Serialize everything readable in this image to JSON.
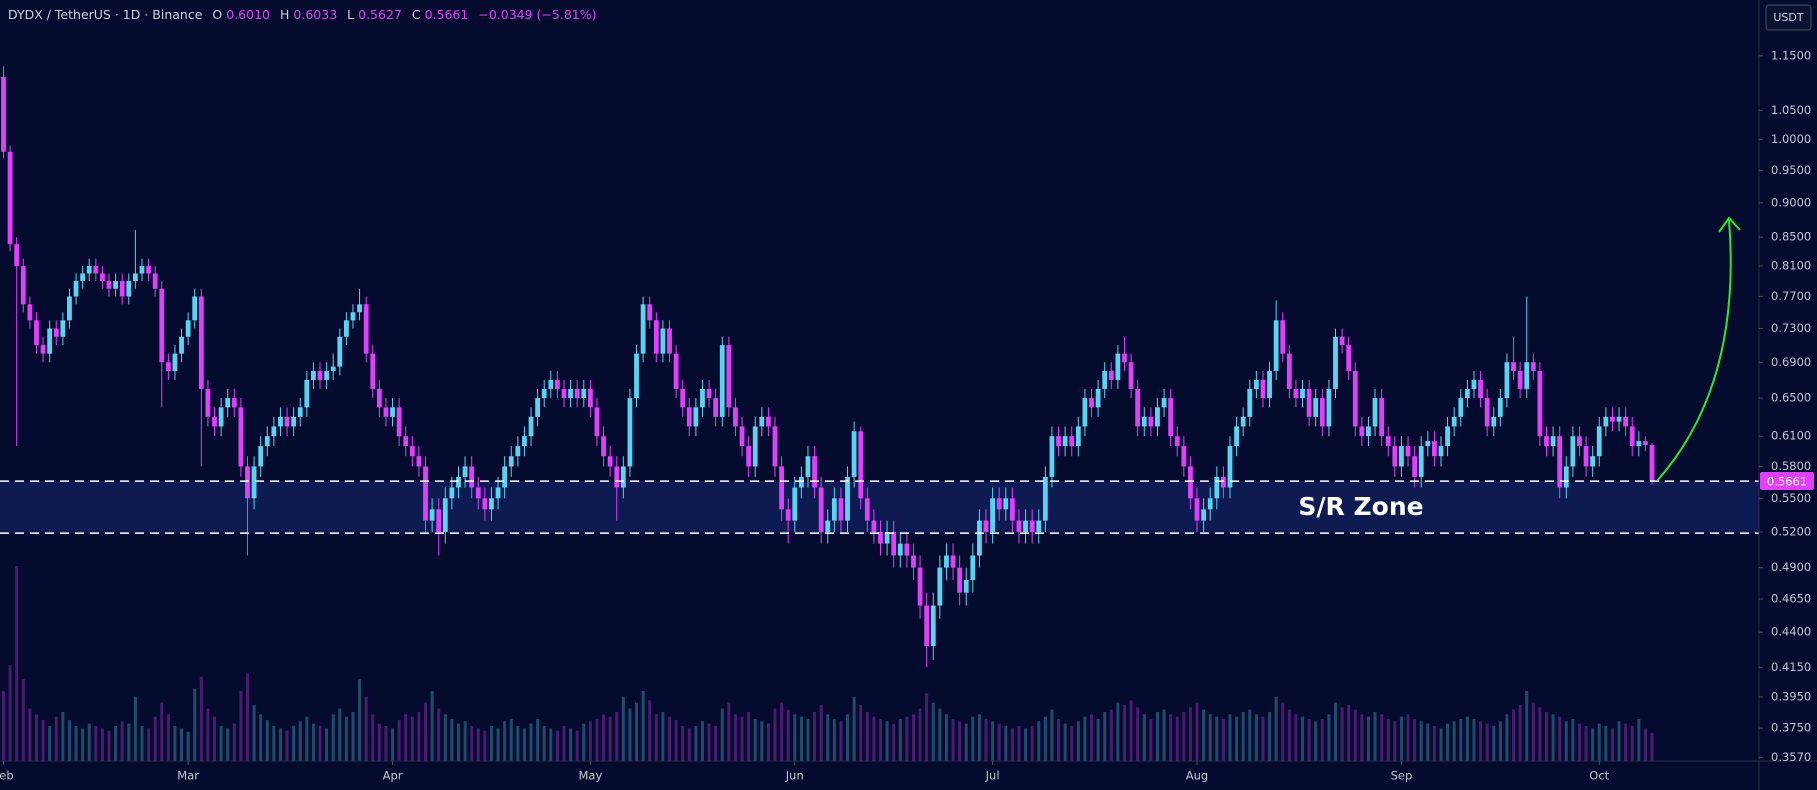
{
  "chart_data": {
    "type": "candlestick",
    "title": "DYDX / TetherUS · 1D · Binance",
    "ohlc_legend": [
      {
        "key": "O",
        "value": "0.6010"
      },
      {
        "key": "H",
        "value": "0.6033"
      },
      {
        "key": "L",
        "value": "0.5627"
      },
      {
        "key": "C",
        "value": "0.5661"
      }
    ],
    "change": "−0.0349 (−5.81%)",
    "unit": "USDT",
    "categories": [
      "Feb",
      null,
      null,
      null,
      null,
      null,
      null,
      null,
      null,
      null,
      null,
      null,
      null,
      null,
      null,
      null,
      null,
      null,
      null,
      null,
      null,
      null,
      null,
      null,
      null,
      null,
      null,
      null,
      "Mar",
      null,
      null,
      null,
      null,
      null,
      null,
      null,
      null,
      null,
      null,
      null,
      null,
      null,
      null,
      null,
      null,
      null,
      null,
      null,
      null,
      null,
      null,
      null,
      null,
      null,
      null,
      null,
      null,
      null,
      null,
      "Apr",
      null,
      null,
      null,
      null,
      null,
      null,
      null,
      null,
      null,
      null,
      null,
      null,
      null,
      null,
      null,
      null,
      null,
      null,
      null,
      null,
      null,
      null,
      null,
      null,
      null,
      null,
      null,
      null,
      null,
      "May",
      null,
      null,
      null,
      null,
      null,
      null,
      null,
      null,
      null,
      null,
      null,
      null,
      null,
      null,
      null,
      null,
      null,
      null,
      null,
      null,
      null,
      null,
      null,
      null,
      null,
      null,
      null,
      null,
      null,
      null,
      "Jun",
      null,
      null,
      null,
      null,
      null,
      null,
      null,
      null,
      null,
      null,
      null,
      null,
      null,
      null,
      null,
      null,
      null,
      null,
      null,
      null,
      null,
      null,
      null,
      null,
      null,
      null,
      null,
      null,
      null,
      "Jul",
      null,
      null,
      null,
      null,
      null,
      null,
      null,
      null,
      null,
      null,
      null,
      null,
      null,
      null,
      null,
      null,
      null,
      null,
      null,
      null,
      null,
      null,
      null,
      null,
      null,
      null,
      null,
      null,
      null,
      null,
      "Aug",
      null,
      null,
      null,
      null,
      null,
      null,
      null,
      null,
      null,
      null,
      null,
      null,
      null,
      null,
      null,
      null,
      null,
      null,
      null,
      null,
      null,
      null,
      null,
      null,
      null,
      null,
      null,
      null,
      null,
      null,
      "Sep",
      null,
      null,
      null,
      null,
      null,
      null,
      null,
      null,
      null,
      null,
      null,
      null,
      null,
      null,
      null,
      null,
      null,
      null,
      null,
      null,
      null,
      null,
      null,
      null,
      null,
      null,
      null,
      null,
      null,
      "Oct",
      null,
      null,
      null,
      null,
      null,
      null,
      null,
      null
    ],
    "open": [
      1.11,
      0.98,
      0.84,
      0.81,
      0.76,
      0.74,
      0.71,
      0.7,
      0.73,
      0.72,
      0.74,
      0.77,
      0.79,
      0.8,
      0.81,
      0.8,
      0.79,
      0.78,
      0.79,
      0.77,
      0.79,
      0.8,
      0.81,
      0.8,
      0.78,
      0.69,
      0.68,
      0.7,
      0.72,
      0.74,
      0.77,
      0.66,
      0.63,
      0.62,
      0.64,
      0.65,
      0.64,
      0.58,
      0.55,
      0.58,
      0.6,
      0.61,
      0.62,
      0.63,
      0.62,
      0.63,
      0.64,
      0.67,
      0.68,
      0.67,
      0.68,
      0.685,
      0.72,
      0.74,
      0.75,
      0.76,
      0.7,
      0.66,
      0.64,
      0.63,
      0.64,
      0.61,
      0.6,
      0.59,
      0.58,
      0.53,
      0.54,
      0.52,
      0.55,
      0.56,
      0.57,
      0.58,
      0.56,
      0.55,
      0.54,
      0.55,
      0.56,
      0.58,
      0.59,
      0.6,
      0.61,
      0.63,
      0.65,
      0.66,
      0.67,
      0.66,
      0.65,
      0.66,
      0.65,
      0.66,
      0.64,
      0.61,
      0.59,
      0.58,
      0.56,
      0.58,
      0.65,
      0.7,
      0.76,
      0.74,
      0.7,
      0.73,
      0.7,
      0.66,
      0.64,
      0.62,
      0.64,
      0.66,
      0.65,
      0.63,
      0.71,
      0.64,
      0.62,
      0.6,
      0.58,
      0.62,
      0.63,
      0.62,
      0.58,
      0.54,
      0.53,
      0.56,
      0.57,
      0.59,
      0.56,
      0.52,
      0.53,
      0.55,
      0.53,
      0.57,
      0.615,
      0.55,
      0.53,
      0.52,
      0.51,
      0.52,
      0.5,
      0.51,
      0.5,
      0.49,
      0.46,
      0.43,
      0.46,
      0.49,
      0.5,
      0.49,
      0.47,
      0.48,
      0.5,
      0.53,
      0.52,
      0.55,
      0.54,
      0.55,
      0.53,
      0.52,
      0.53,
      0.52,
      0.53,
      0.57,
      0.61,
      0.6,
      0.61,
      0.6,
      0.62,
      0.65,
      0.64,
      0.66,
      0.68,
      0.67,
      0.7,
      0.69,
      0.66,
      0.62,
      0.63,
      0.62,
      0.64,
      0.65,
      0.61,
      0.6,
      0.58,
      0.55,
      0.53,
      0.54,
      0.55,
      0.57,
      0.56,
      0.6,
      0.62,
      0.63,
      0.66,
      0.67,
      0.65,
      0.68,
      0.74,
      0.7,
      0.66,
      0.65,
      0.66,
      0.63,
      0.65,
      0.62,
      0.66,
      0.72,
      0.71,
      0.68,
      0.62,
      0.61,
      0.62,
      0.65,
      0.61,
      0.6,
      0.58,
      0.6,
      0.59,
      0.57,
      0.6,
      0.605,
      0.59,
      0.6,
      0.62,
      0.63,
      0.65,
      0.66,
      0.67,
      0.65,
      0.62,
      0.63,
      0.65,
      0.69,
      0.68,
      0.66,
      0.69,
      0.68,
      0.61,
      0.6,
      0.61,
      0.56,
      0.58,
      0.61,
      0.6,
      0.58,
      0.59,
      0.62,
      0.63,
      0.625,
      0.63,
      0.62,
      0.6,
      0.605,
      0.601
    ],
    "high": [
      1.13,
      0.99,
      0.85,
      0.82,
      0.77,
      0.75,
      0.72,
      0.74,
      0.74,
      0.75,
      0.78,
      0.8,
      0.81,
      0.82,
      0.82,
      0.81,
      0.8,
      0.8,
      0.8,
      0.8,
      0.86,
      0.82,
      0.82,
      0.81,
      0.79,
      0.7,
      0.71,
      0.73,
      0.75,
      0.78,
      0.78,
      0.67,
      0.64,
      0.65,
      0.66,
      0.66,
      0.65,
      0.59,
      0.59,
      0.61,
      0.62,
      0.63,
      0.64,
      0.64,
      0.64,
      0.65,
      0.68,
      0.69,
      0.69,
      0.69,
      0.7,
      0.73,
      0.75,
      0.76,
      0.78,
      0.77,
      0.71,
      0.67,
      0.65,
      0.65,
      0.65,
      0.62,
      0.61,
      0.6,
      0.59,
      0.55,
      0.55,
      0.56,
      0.57,
      0.58,
      0.59,
      0.59,
      0.57,
      0.56,
      0.56,
      0.57,
      0.59,
      0.6,
      0.61,
      0.62,
      0.64,
      0.66,
      0.67,
      0.68,
      0.68,
      0.67,
      0.67,
      0.67,
      0.67,
      0.67,
      0.65,
      0.62,
      0.6,
      0.59,
      0.59,
      0.66,
      0.71,
      0.77,
      0.77,
      0.75,
      0.74,
      0.74,
      0.71,
      0.67,
      0.65,
      0.65,
      0.67,
      0.67,
      0.66,
      0.72,
      0.72,
      0.65,
      0.63,
      0.61,
      0.63,
      0.64,
      0.64,
      0.63,
      0.59,
      0.55,
      0.57,
      0.58,
      0.6,
      0.6,
      0.57,
      0.54,
      0.56,
      0.56,
      0.58,
      0.625,
      0.62,
      0.56,
      0.54,
      0.53,
      0.53,
      0.53,
      0.52,
      0.52,
      0.51,
      0.5,
      0.47,
      0.47,
      0.5,
      0.51,
      0.51,
      0.5,
      0.49,
      0.51,
      0.54,
      0.54,
      0.56,
      0.56,
      0.56,
      0.56,
      0.54,
      0.54,
      0.54,
      0.54,
      0.58,
      0.62,
      0.62,
      0.62,
      0.62,
      0.63,
      0.66,
      0.66,
      0.67,
      0.69,
      0.69,
      0.71,
      0.72,
      0.7,
      0.67,
      0.64,
      0.64,
      0.65,
      0.66,
      0.66,
      0.62,
      0.61,
      0.59,
      0.56,
      0.55,
      0.56,
      0.58,
      0.58,
      0.61,
      0.63,
      0.64,
      0.67,
      0.68,
      0.68,
      0.69,
      0.765,
      0.75,
      0.71,
      0.67,
      0.67,
      0.67,
      0.66,
      0.66,
      0.67,
      0.73,
      0.73,
      0.72,
      0.69,
      0.63,
      0.63,
      0.66,
      0.66,
      0.62,
      0.61,
      0.61,
      0.61,
      0.6,
      0.61,
      0.615,
      0.615,
      0.61,
      0.63,
      0.64,
      0.66,
      0.67,
      0.68,
      0.68,
      0.66,
      0.64,
      0.66,
      0.7,
      0.72,
      0.69,
      0.77,
      0.7,
      0.69,
      0.62,
      0.62,
      0.62,
      0.59,
      0.62,
      0.62,
      0.61,
      0.6,
      0.63,
      0.64,
      0.64,
      0.64,
      0.64,
      0.63,
      0.615,
      0.61,
      0.6033
    ],
    "low": [
      0.97,
      0.83,
      0.6,
      0.75,
      0.73,
      0.7,
      0.69,
      0.69,
      0.71,
      0.71,
      0.73,
      0.76,
      0.78,
      0.79,
      0.79,
      0.78,
      0.77,
      0.77,
      0.76,
      0.76,
      0.78,
      0.79,
      0.79,
      0.77,
      0.64,
      0.67,
      0.67,
      0.69,
      0.71,
      0.73,
      0.58,
      0.62,
      0.61,
      0.61,
      0.63,
      0.63,
      0.57,
      0.5,
      0.54,
      0.57,
      0.59,
      0.6,
      0.61,
      0.61,
      0.61,
      0.62,
      0.63,
      0.66,
      0.66,
      0.66,
      0.67,
      0.675,
      0.71,
      0.73,
      0.74,
      0.69,
      0.65,
      0.63,
      0.62,
      0.62,
      0.6,
      0.59,
      0.58,
      0.57,
      0.52,
      0.52,
      0.5,
      0.51,
      0.54,
      0.55,
      0.56,
      0.55,
      0.54,
      0.53,
      0.53,
      0.54,
      0.55,
      0.57,
      0.58,
      0.59,
      0.6,
      0.62,
      0.64,
      0.65,
      0.65,
      0.64,
      0.64,
      0.64,
      0.64,
      0.63,
      0.6,
      0.58,
      0.57,
      0.53,
      0.55,
      0.57,
      0.64,
      0.69,
      0.73,
      0.69,
      0.69,
      0.69,
      0.65,
      0.63,
      0.61,
      0.61,
      0.63,
      0.64,
      0.62,
      0.62,
      0.63,
      0.61,
      0.59,
      0.57,
      0.57,
      0.61,
      0.61,
      0.57,
      0.53,
      0.51,
      0.52,
      0.55,
      0.56,
      0.55,
      0.51,
      0.51,
      0.52,
      0.52,
      0.52,
      0.56,
      0.54,
      0.52,
      0.51,
      0.5,
      0.5,
      0.49,
      0.49,
      0.49,
      0.48,
      0.45,
      0.415,
      0.42,
      0.45,
      0.48,
      0.48,
      0.46,
      0.46,
      0.47,
      0.49,
      0.51,
      0.51,
      0.53,
      0.53,
      0.52,
      0.51,
      0.51,
      0.51,
      0.51,
      0.52,
      0.56,
      0.59,
      0.59,
      0.59,
      0.59,
      0.61,
      0.63,
      0.63,
      0.65,
      0.66,
      0.66,
      0.68,
      0.65,
      0.61,
      0.61,
      0.61,
      0.61,
      0.63,
      0.6,
      0.59,
      0.57,
      0.54,
      0.52,
      0.52,
      0.53,
      0.54,
      0.55,
      0.55,
      0.59,
      0.61,
      0.62,
      0.65,
      0.64,
      0.64,
      0.67,
      0.69,
      0.65,
      0.64,
      0.64,
      0.62,
      0.62,
      0.61,
      0.61,
      0.65,
      0.7,
      0.67,
      0.61,
      0.6,
      0.6,
      0.61,
      0.6,
      0.59,
      0.57,
      0.57,
      0.58,
      0.56,
      0.56,
      0.59,
      0.58,
      0.58,
      0.59,
      0.61,
      0.62,
      0.64,
      0.65,
      0.64,
      0.61,
      0.61,
      0.62,
      0.64,
      0.67,
      0.65,
      0.65,
      0.67,
      0.6,
      0.59,
      0.59,
      0.55,
      0.55,
      0.57,
      0.59,
      0.57,
      0.57,
      0.58,
      0.61,
      0.615,
      0.615,
      0.61,
      0.59,
      0.59,
      0.595,
      0.5627
    ],
    "close": [
      0.98,
      0.84,
      0.81,
      0.76,
      0.74,
      0.71,
      0.7,
      0.73,
      0.72,
      0.74,
      0.77,
      0.79,
      0.8,
      0.81,
      0.8,
      0.79,
      0.78,
      0.79,
      0.77,
      0.79,
      0.8,
      0.81,
      0.8,
      0.78,
      0.69,
      0.68,
      0.7,
      0.72,
      0.74,
      0.77,
      0.66,
      0.63,
      0.62,
      0.64,
      0.65,
      0.64,
      0.58,
      0.55,
      0.58,
      0.6,
      0.61,
      0.62,
      0.63,
      0.62,
      0.63,
      0.64,
      0.67,
      0.68,
      0.67,
      0.68,
      0.685,
      0.72,
      0.74,
      0.75,
      0.76,
      0.7,
      0.66,
      0.64,
      0.63,
      0.64,
      0.61,
      0.6,
      0.59,
      0.58,
      0.53,
      0.54,
      0.52,
      0.55,
      0.56,
      0.57,
      0.58,
      0.56,
      0.55,
      0.54,
      0.55,
      0.56,
      0.58,
      0.59,
      0.6,
      0.61,
      0.63,
      0.65,
      0.66,
      0.67,
      0.66,
      0.65,
      0.66,
      0.65,
      0.66,
      0.64,
      0.61,
      0.59,
      0.58,
      0.56,
      0.58,
      0.65,
      0.7,
      0.76,
      0.74,
      0.7,
      0.73,
      0.7,
      0.66,
      0.64,
      0.62,
      0.64,
      0.66,
      0.65,
      0.63,
      0.71,
      0.64,
      0.62,
      0.6,
      0.58,
      0.62,
      0.63,
      0.62,
      0.58,
      0.54,
      0.53,
      0.56,
      0.57,
      0.59,
      0.56,
      0.52,
      0.53,
      0.55,
      0.53,
      0.57,
      0.615,
      0.55,
      0.53,
      0.52,
      0.51,
      0.52,
      0.5,
      0.51,
      0.5,
      0.49,
      0.46,
      0.43,
      0.46,
      0.49,
      0.5,
      0.49,
      0.47,
      0.48,
      0.5,
      0.53,
      0.52,
      0.55,
      0.54,
      0.55,
      0.53,
      0.52,
      0.53,
      0.52,
      0.53,
      0.57,
      0.61,
      0.6,
      0.61,
      0.6,
      0.62,
      0.65,
      0.64,
      0.66,
      0.68,
      0.67,
      0.7,
      0.69,
      0.66,
      0.62,
      0.63,
      0.62,
      0.64,
      0.65,
      0.61,
      0.6,
      0.58,
      0.55,
      0.53,
      0.54,
      0.55,
      0.57,
      0.56,
      0.6,
      0.62,
      0.63,
      0.66,
      0.67,
      0.65,
      0.68,
      0.74,
      0.7,
      0.66,
      0.65,
      0.66,
      0.63,
      0.65,
      0.62,
      0.66,
      0.72,
      0.71,
      0.68,
      0.62,
      0.61,
      0.62,
      0.65,
      0.61,
      0.6,
      0.58,
      0.6,
      0.59,
      0.57,
      0.6,
      0.605,
      0.59,
      0.6,
      0.62,
      0.63,
      0.65,
      0.66,
      0.67,
      0.65,
      0.62,
      0.63,
      0.65,
      0.69,
      0.68,
      0.66,
      0.69,
      0.68,
      0.61,
      0.6,
      0.61,
      0.56,
      0.58,
      0.61,
      0.6,
      0.58,
      0.59,
      0.62,
      0.63,
      0.625,
      0.63,
      0.62,
      0.6,
      0.605,
      0.601,
      0.5661
    ],
    "volume": [
      60,
      82,
      167,
      70,
      45,
      40,
      35,
      30,
      38,
      42,
      35,
      30,
      28,
      32,
      30,
      28,
      26,
      30,
      34,
      32,
      55,
      30,
      28,
      38,
      50,
      40,
      30,
      28,
      25,
      62,
      72,
      45,
      38,
      30,
      28,
      32,
      60,
      75,
      48,
      40,
      35,
      30,
      28,
      26,
      30,
      34,
      38,
      32,
      30,
      28,
      40,
      45,
      38,
      42,
      70,
      55,
      40,
      32,
      30,
      28,
      35,
      40,
      38,
      42,
      50,
      60,
      45,
      40,
      36,
      32,
      34,
      30,
      28,
      26,
      30,
      28,
      34,
      36,
      30,
      28,
      32,
      36,
      30,
      28,
      26,
      30,
      28,
      26,
      32,
      34,
      36,
      40,
      38,
      42,
      55,
      45,
      50,
      60,
      52,
      40,
      42,
      38,
      35,
      30,
      28,
      30,
      34,
      32,
      30,
      45,
      50,
      40,
      38,
      42,
      36,
      34,
      32,
      45,
      50,
      44,
      40,
      38,
      36,
      42,
      48,
      40,
      36,
      34,
      40,
      55,
      48,
      42,
      38,
      36,
      34,
      32,
      36,
      38,
      40,
      45,
      58,
      50,
      45,
      40,
      36,
      34,
      32,
      38,
      40,
      36,
      34,
      32,
      30,
      28,
      30,
      28,
      30,
      34,
      38,
      44,
      36,
      32,
      30,
      34,
      38,
      40,
      36,
      42,
      44,
      50,
      48,
      52,
      46,
      40,
      36,
      42,
      44,
      40,
      38,
      42,
      46,
      50,
      44,
      40,
      38,
      36,
      40,
      38,
      42,
      44,
      40,
      38,
      42,
      55,
      50,
      44,
      40,
      38,
      36,
      34,
      36,
      40,
      50,
      46,
      48,
      44,
      40,
      38,
      42,
      40,
      36,
      34,
      38,
      40,
      36,
      34,
      32,
      30,
      28,
      32,
      34,
      36,
      38,
      36,
      34,
      32,
      30,
      34,
      40,
      44,
      48,
      60,
      50,
      46,
      42,
      40,
      38,
      34,
      36,
      32,
      30,
      28,
      32,
      30,
      28,
      34,
      32,
      30,
      36,
      28,
      24
    ],
    "up_color": "#5ad4f2",
    "down_color": "#e040fb",
    "log_scale": true,
    "grid": false,
    "ylim": [
      0.355,
      1.262
    ],
    "yticks": [
      {
        "value": 1.15,
        "label": "1.1500"
      },
      {
        "value": 1.05,
        "label": "1.0500"
      },
      {
        "value": 1.0,
        "label": "1.0000"
      },
      {
        "value": 0.95,
        "label": "0.9500"
      },
      {
        "value": 0.9,
        "label": "0.9000"
      },
      {
        "value": 0.85,
        "label": "0.8500"
      },
      {
        "value": 0.81,
        "label": "0.8100"
      },
      {
        "value": 0.77,
        "label": "0.7700"
      },
      {
        "value": 0.73,
        "label": "0.7300"
      },
      {
        "value": 0.69,
        "label": "0.6900"
      },
      {
        "value": 0.65,
        "label": "0.6500"
      },
      {
        "value": 0.61,
        "label": "0.6100"
      },
      {
        "value": 0.58,
        "label": "0.5800"
      },
      {
        "value": 0.55,
        "label": "0.5500"
      },
      {
        "value": 0.52,
        "label": "0.5200"
      },
      {
        "value": 0.49,
        "label": "0.4900"
      },
      {
        "value": 0.465,
        "label": "0.4650"
      },
      {
        "value": 0.44,
        "label": "0.4400"
      },
      {
        "value": 0.415,
        "label": "0.4150"
      },
      {
        "value": 0.395,
        "label": "0.3950"
      },
      {
        "value": 0.375,
        "label": "0.3750"
      },
      {
        "value": 0.357,
        "label": "0.3570"
      }
    ],
    "zone": {
      "label": "S/R Zone",
      "range": [
        0.519,
        0.566
      ]
    }
  }
}
